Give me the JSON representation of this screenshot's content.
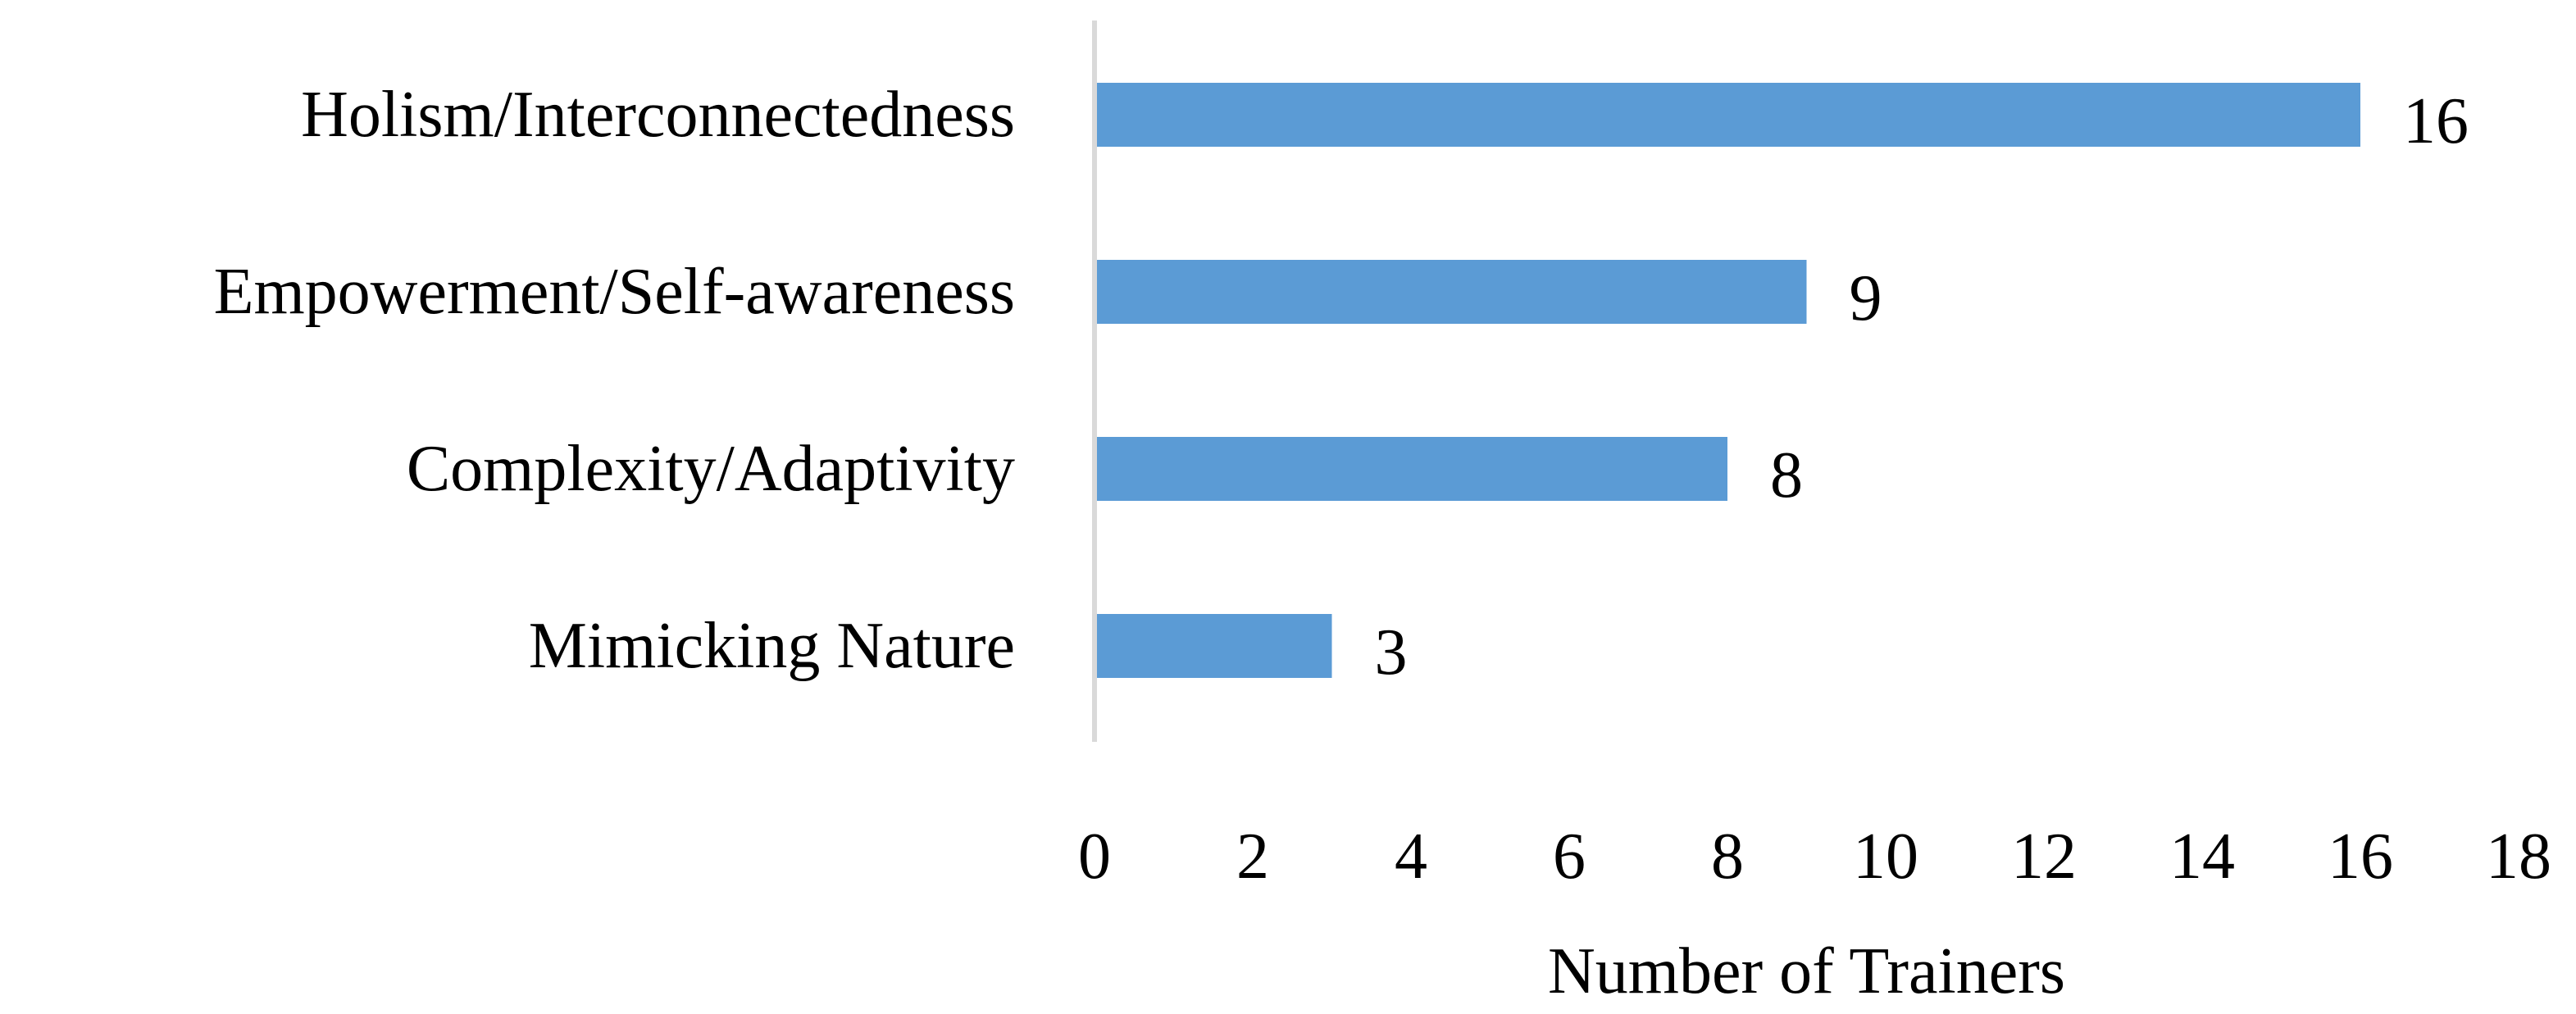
{
  "chart_data": {
    "type": "bar",
    "orientation": "horizontal",
    "categories": [
      "Holism/Interconnectedness",
      "Empowerment/Self-awareness",
      "Complexity/Adaptivity",
      "Mimicking Nature"
    ],
    "values": [
      16,
      9,
      8,
      3
    ],
    "title": "",
    "xlabel": "Number of Trainers",
    "ylabel": "",
    "xlim": [
      0,
      18
    ],
    "xticks": [
      0,
      2,
      4,
      6,
      8,
      10,
      12,
      14,
      16,
      18
    ],
    "grid": false,
    "legend": "none",
    "bar_color": "#5B9BD5",
    "axis_color": "#D9D9D9"
  }
}
